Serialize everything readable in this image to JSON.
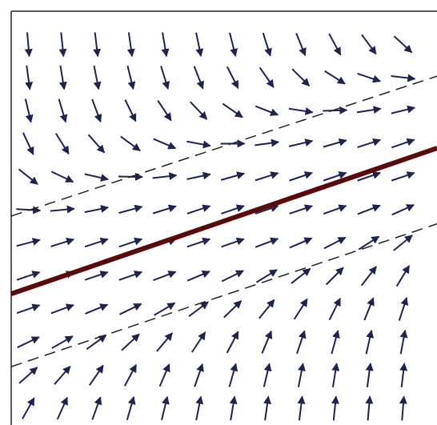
{
  "chart_data": {
    "type": "quiver",
    "xlim": [
      0,
      10
    ],
    "ylim": [
      0,
      10
    ],
    "arrow_color": "#1f2350",
    "x": [
      0.4,
      1.2,
      2.0,
      2.8,
      3.6,
      4.4,
      5.2,
      6.0,
      6.8,
      7.6,
      8.4,
      9.2
    ],
    "y": [
      0.4,
      1.2,
      2.0,
      2.8,
      3.6,
      4.4,
      5.2,
      6.0,
      6.8,
      7.6,
      8.4,
      9.2
    ],
    "slopes": [
      [
        1.83,
        2.3,
        2.86,
        3.54,
        4.3,
        5.19,
        6.19,
        7.3,
        8.6,
        10.1,
        11.6,
        13.4
      ],
      [
        0.91,
        1.17,
        1.49,
        1.9,
        2.39,
        2.97,
        3.64,
        4.42,
        5.32,
        6.38,
        7.54,
        8.83
      ],
      [
        0.49,
        0.59,
        0.74,
        0.95,
        1.22,
        1.56,
        1.97,
        2.47,
        3.06,
        3.78,
        4.57,
        5.5
      ],
      [
        0.36,
        0.38,
        0.42,
        0.5,
        0.61,
        0.77,
        0.99,
        1.27,
        1.61,
        2.05,
        2.56,
        3.17
      ],
      [
        0.35,
        0.35,
        0.35,
        0.36,
        0.39,
        0.43,
        0.51,
        0.63,
        0.8,
        1.03,
        1.32,
        1.68
      ],
      [
        0.27,
        0.32,
        0.34,
        0.35,
        0.35,
        0.35,
        0.36,
        0.39,
        0.44,
        0.53,
        0.66,
        0.84
      ],
      [
        -0.06,
        0.1,
        0.21,
        0.28,
        0.32,
        0.34,
        0.35,
        0.35,
        0.35,
        0.37,
        0.4,
        0.46
      ],
      [
        -0.82,
        -0.49,
        -0.23,
        -0.02,
        0.12,
        0.22,
        0.29,
        0.33,
        0.35,
        0.35,
        0.35,
        0.35
      ],
      [
        -2.2,
        -1.64,
        -1.16,
        -0.75,
        -0.44,
        -0.19,
        0,
        0.14,
        0.24,
        0.3,
        0.33,
        0.35
      ],
      [
        -4.39,
        -3.52,
        -2.76,
        -2.09,
        -1.55,
        -1.08,
        -0.71,
        -0.4,
        -0.16,
        0.03,
        0.16,
        0.25
      ],
      [
        -7.56,
        -6.33,
        -5.23,
        -4.22,
        -3.38,
        -2.64,
        -2.01,
        -1.47,
        -1.02,
        -0.65,
        -0.35,
        -0.12
      ],
      [
        -11.9,
        -10.2,
        -8.73,
        -7.33,
        -6.12,
        -5.04,
        -4.1,
        -3.26,
        -2.54,
        -1.91,
        -1.39,
        -0.95
      ]
    ],
    "series": [
      {
        "color": "#5a0a0a",
        "style": "solid",
        "x": [
          0,
          10
        ],
        "y": [
          3.17,
          6.69
        ]
      },
      {
        "color": "#222222",
        "style": "dashed",
        "x": [
          0,
          10
        ],
        "y": [
          5.05,
          8.43
        ]
      },
      {
        "color": "#222222",
        "style": "dashed",
        "x": [
          0,
          10
        ],
        "y": [
          1.41,
          4.86
        ]
      }
    ]
  }
}
